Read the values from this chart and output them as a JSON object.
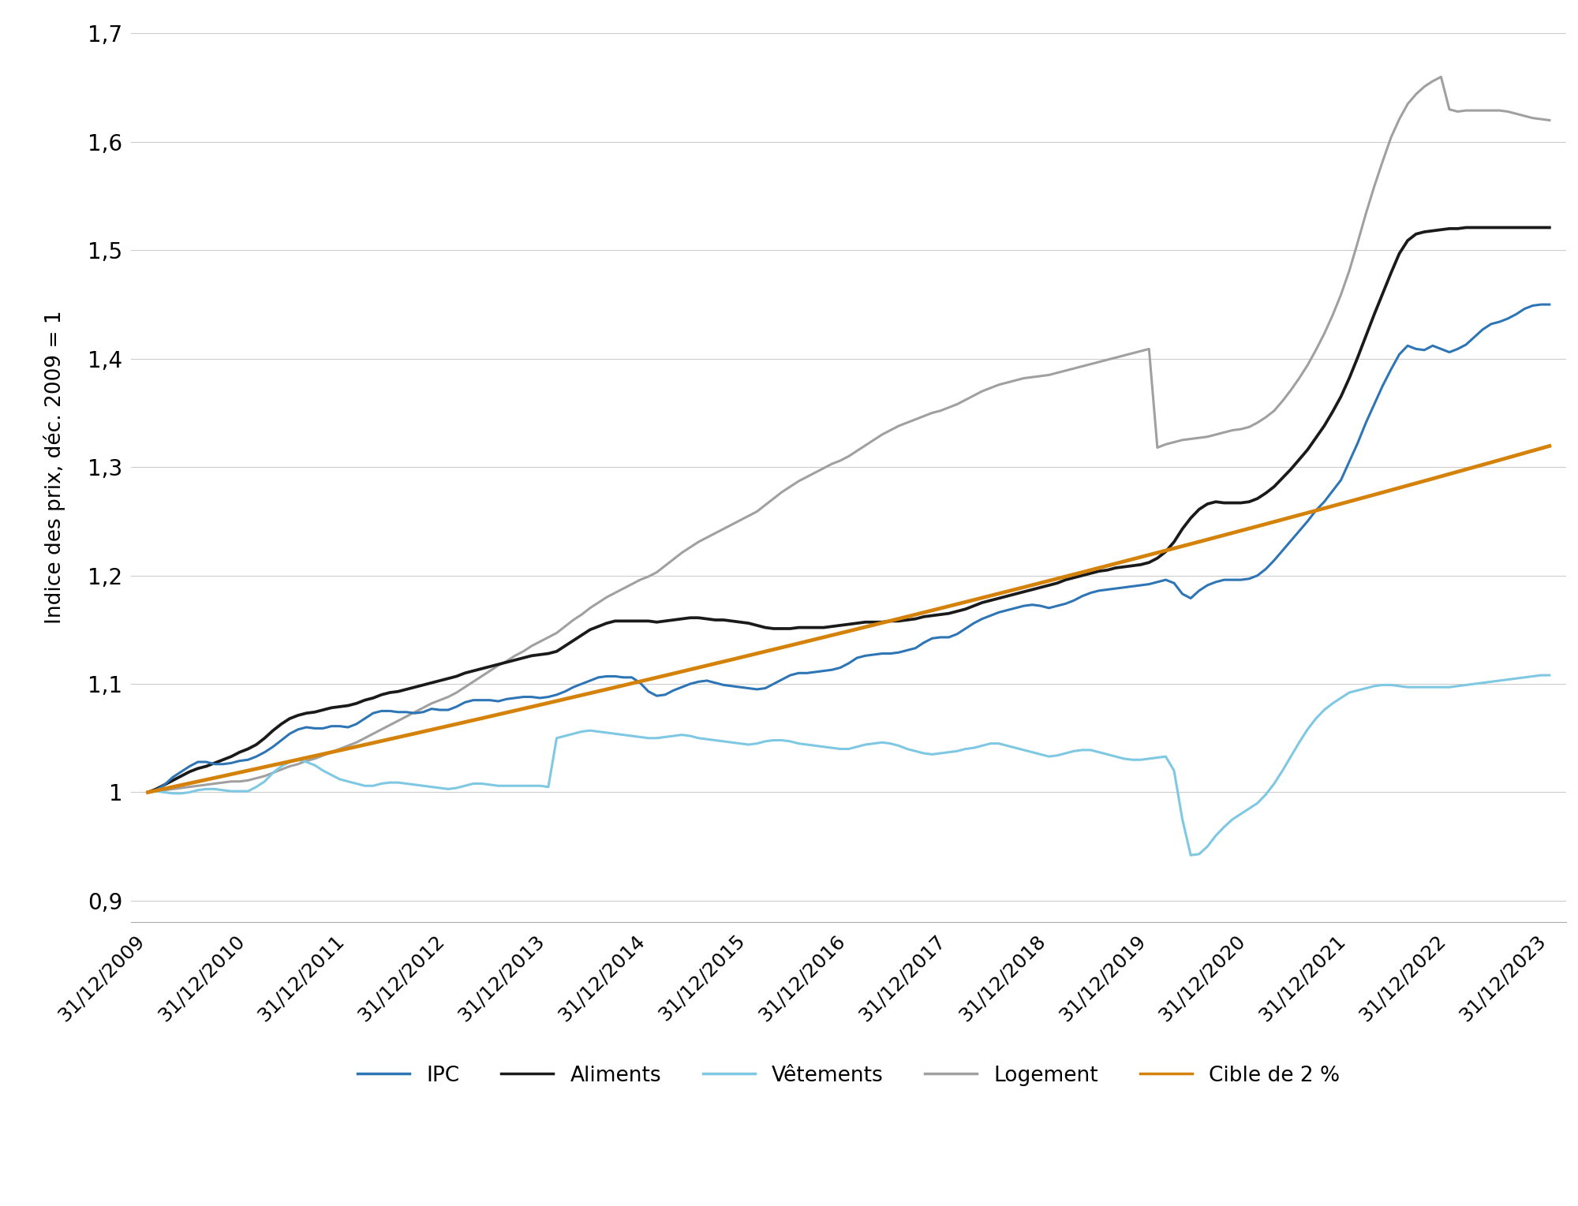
{
  "ylabel": "Indice des prix, déc. 2009 = 1",
  "ylim": [
    0.88,
    1.72
  ],
  "yticks": [
    0.9,
    1.0,
    1.1,
    1.2,
    1.3,
    1.4,
    1.5,
    1.6,
    1.7
  ],
  "ytick_labels": [
    "0,9",
    "1",
    "1,1",
    "1,2",
    "1,3",
    "1,4",
    "1,5",
    "1,6",
    "1,7"
  ],
  "xtick_labels": [
    "31/12/2009",
    "31/12/2010",
    "31/12/2011",
    "31/12/2012",
    "31/12/2013",
    "31/12/2014",
    "31/12/2015",
    "31/12/2016",
    "31/12/2017",
    "31/12/2018",
    "31/12/2019",
    "31/12/2020",
    "31/12/2021",
    "31/12/2022",
    "31/12/2023"
  ],
  "colors": {
    "IPC": "#2e75b6",
    "Aliments": "#1a1a1a",
    "Vetements": "#7ec8e3",
    "Logement": "#a0a0a0",
    "Cible": "#d4820a"
  },
  "background_color": "#ffffff",
  "grid_color": "#cccccc"
}
